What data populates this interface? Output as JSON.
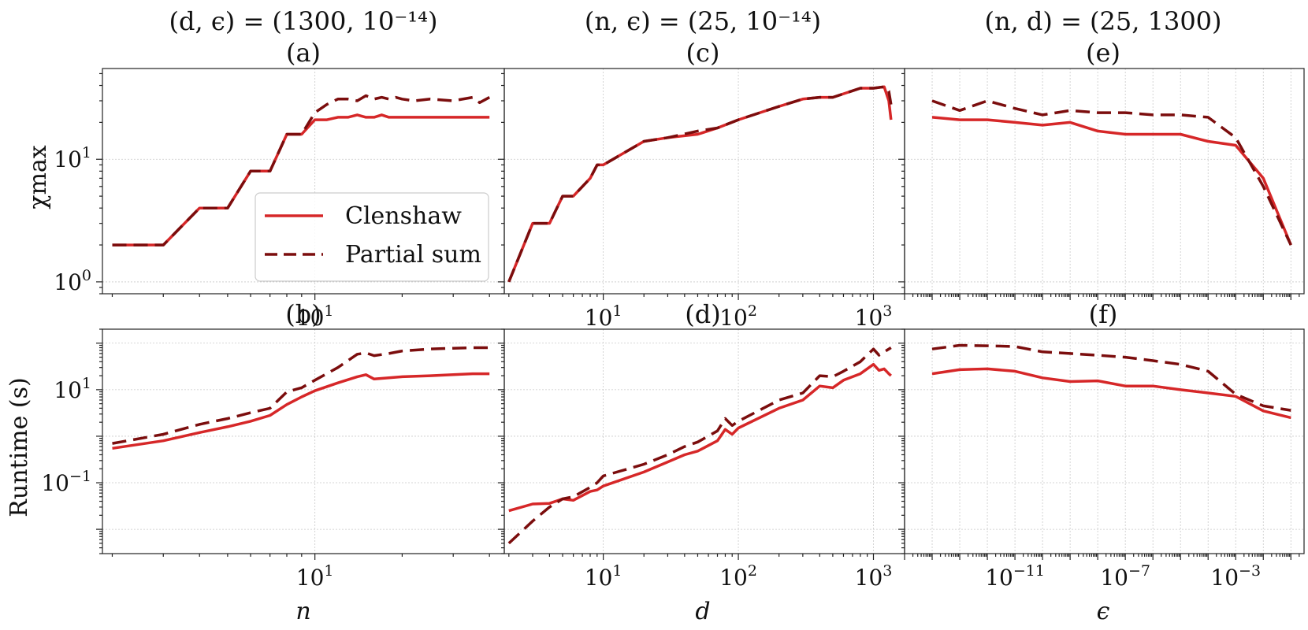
{
  "colors": {
    "clenshaw": "#d62728",
    "partial": "#7b0d0d",
    "grid": "#c9c9c9",
    "axis": "#222222"
  },
  "column_titles": [
    "(d, ϵ) = (1300, 10⁻¹⁴)",
    "(n, ϵ) = (25, 10⁻¹⁴)",
    "(n, d) = (25, 1300)"
  ],
  "row_ylabels": [
    "χmax",
    "Runtime (s)"
  ],
  "legend": {
    "clenshaw": "Clenshaw",
    "partial": "Partial sum",
    "placement": "lower-right of panel a"
  },
  "chart_data": [
    {
      "panel": "(a)",
      "type": "line",
      "xscale": "log",
      "yscale": "log",
      "xlim": [
        1.85,
        45
      ],
      "ylim": [
        0.8,
        55
      ],
      "xlabel": "",
      "ylabel": "χmax",
      "xticks": [
        {
          "v": 10,
          "label": "10",
          "exp": "1"
        }
      ],
      "yticks": [
        {
          "v": 1,
          "label": "10",
          "exp": "0"
        },
        {
          "v": 10,
          "label": "10",
          "exp": "1"
        }
      ],
      "series": [
        {
          "name": "Clenshaw",
          "x": [
            2,
            3,
            4,
            5,
            6,
            7,
            8,
            9,
            10,
            11,
            12,
            13,
            14,
            15,
            16,
            17,
            18,
            19,
            20,
            22,
            25,
            30,
            35,
            40
          ],
          "y": [
            2,
            2,
            4,
            4,
            8,
            8,
            16,
            16,
            21,
            21,
            22,
            22,
            23,
            22,
            22,
            23,
            22,
            22,
            22,
            22,
            22,
            22,
            22,
            22
          ]
        },
        {
          "name": "Partial sum",
          "x": [
            2,
            3,
            4,
            5,
            6,
            7,
            8,
            9,
            10,
            11,
            12,
            13,
            14,
            15,
            16,
            17,
            18,
            19,
            20,
            22,
            25,
            30,
            35,
            37,
            40
          ],
          "y": [
            2,
            2,
            4,
            4,
            8,
            8,
            16,
            16,
            24,
            28,
            31,
            31,
            30,
            33,
            31,
            32,
            31,
            32,
            31,
            30,
            31,
            30,
            32,
            29,
            32
          ]
        }
      ]
    },
    {
      "panel": "(c)",
      "type": "line",
      "xscale": "log",
      "yscale": "log",
      "xlim": [
        1.85,
        1700
      ],
      "ylim": [
        0.8,
        55
      ],
      "xlabel": "",
      "ylabel": "",
      "xticks": [
        {
          "v": 10,
          "label": "10",
          "exp": "1"
        },
        {
          "v": 100,
          "label": "10",
          "exp": "2"
        },
        {
          "v": 1000,
          "label": "10",
          "exp": "3"
        }
      ],
      "yticks": [],
      "series": [
        {
          "name": "Clenshaw",
          "x": [
            2,
            3,
            4,
            5,
            6,
            8,
            9,
            10,
            20,
            30,
            50,
            70,
            100,
            200,
            300,
            400,
            500,
            800,
            1000,
            1200,
            1300,
            1350
          ],
          "y": [
            1,
            3,
            3,
            5,
            5,
            7,
            9,
            9,
            14,
            15,
            16,
            18,
            21,
            27,
            31,
            32,
            32,
            38,
            38,
            39,
            30,
            21
          ]
        },
        {
          "name": "Partial sum",
          "x": [
            2,
            3,
            4,
            5,
            6,
            8,
            9,
            10,
            20,
            30,
            50,
            70,
            100,
            200,
            300,
            400,
            500,
            800,
            1000,
            1200,
            1300,
            1350
          ],
          "y": [
            1,
            3,
            3,
            5,
            5,
            7,
            9,
            9,
            14,
            15,
            17,
            18,
            21,
            27,
            31,
            32,
            32,
            38,
            38,
            39,
            36,
            28
          ]
        }
      ]
    },
    {
      "panel": "(e)",
      "type": "line",
      "xscale": "log",
      "yscale": "log",
      "xlim": [
        1e-15,
        0.3
      ],
      "ylim": [
        0.8,
        55
      ],
      "xlabel": "",
      "ylabel": "",
      "xticks": [],
      "yticks": [],
      "series": [
        {
          "name": "Clenshaw",
          "x": [
            1e-14,
            1e-13,
            1e-12,
            1e-11,
            1e-10,
            1e-09,
            1e-08,
            1e-07,
            1e-06,
            1e-05,
            0.0001,
            0.001,
            0.01,
            0.1
          ],
          "y": [
            22,
            21,
            21,
            20,
            19,
            20,
            17,
            16,
            16,
            16,
            14,
            13,
            7,
            2
          ]
        },
        {
          "name": "Partial sum",
          "x": [
            1e-14,
            1e-13,
            1e-12,
            1e-11,
            1e-10,
            1e-09,
            1e-08,
            1e-07,
            1e-06,
            1e-05,
            0.0001,
            0.001,
            0.01,
            0.1
          ],
          "y": [
            30,
            25,
            30,
            26,
            23,
            25,
            24,
            24,
            23,
            23,
            22,
            15,
            6,
            2
          ]
        }
      ]
    },
    {
      "panel": "(b)",
      "type": "line",
      "xscale": "log",
      "yscale": "log",
      "xlim": [
        1.85,
        45
      ],
      "ylim": [
        0.003,
        200
      ],
      "xlabel": "n",
      "ylabel": "Runtime (s)",
      "xticks": [
        {
          "v": 10,
          "label": "10",
          "exp": "1"
        }
      ],
      "yticks": [
        {
          "v": 0.1,
          "label": "10",
          "exp": "−1"
        },
        {
          "v": 10,
          "label": "10",
          "exp": "1"
        }
      ],
      "series": [
        {
          "name": "Clenshaw",
          "x": [
            2,
            3,
            4,
            5,
            6,
            7,
            8,
            9,
            10,
            12,
            14,
            15,
            16,
            18,
            20,
            25,
            30,
            35,
            40
          ],
          "y": [
            0.55,
            0.8,
            1.2,
            1.6,
            2.1,
            2.8,
            4.8,
            7,
            9.5,
            14,
            19,
            21,
            17,
            18,
            19,
            20,
            21,
            22,
            22
          ]
        },
        {
          "name": "Partial sum",
          "x": [
            2,
            3,
            4,
            5,
            6,
            7,
            8,
            9,
            10,
            12,
            14,
            15,
            16,
            18,
            20,
            25,
            30,
            35,
            40
          ],
          "y": [
            0.7,
            1.1,
            1.8,
            2.4,
            3.2,
            4,
            9,
            11,
            16,
            30,
            58,
            62,
            54,
            60,
            68,
            75,
            78,
            80,
            80
          ]
        }
      ]
    },
    {
      "panel": "(d)",
      "type": "line",
      "xscale": "log",
      "yscale": "log",
      "xlim": [
        1.85,
        1700
      ],
      "ylim": [
        0.003,
        200
      ],
      "xlabel": "d",
      "ylabel": "",
      "xticks": [
        {
          "v": 10,
          "label": "10",
          "exp": "1"
        },
        {
          "v": 100,
          "label": "10",
          "exp": "2"
        },
        {
          "v": 1000,
          "label": "10",
          "exp": "3"
        }
      ],
      "yticks": [],
      "series": [
        {
          "name": "Clenshaw",
          "x": [
            2,
            3,
            4,
            5,
            6,
            8,
            9,
            10,
            20,
            30,
            40,
            50,
            70,
            80,
            90,
            100,
            200,
            300,
            400,
            500,
            600,
            800,
            1000,
            1100,
            1200,
            1300,
            1350
          ],
          "y": [
            0.025,
            0.035,
            0.036,
            0.045,
            0.042,
            0.065,
            0.07,
            0.085,
            0.17,
            0.28,
            0.4,
            0.48,
            0.8,
            1.4,
            1.1,
            1.5,
            4,
            6,
            12,
            11,
            16,
            22,
            35,
            26,
            28,
            22,
            20
          ]
        },
        {
          "name": "Partial sum",
          "x": [
            2,
            3,
            4,
            5,
            6,
            8,
            9,
            10,
            20,
            30,
            40,
            50,
            70,
            80,
            90,
            100,
            200,
            300,
            400,
            500,
            600,
            800,
            1000,
            1100,
            1200,
            1300,
            1350
          ],
          "y": [
            0.005,
            0.015,
            0.03,
            0.045,
            0.05,
            0.08,
            0.1,
            0.14,
            0.25,
            0.4,
            0.6,
            0.75,
            1.3,
            2.4,
            1.7,
            2.1,
            6,
            8.5,
            20,
            19,
            25,
            40,
            75,
            55,
            65,
            75,
            80
          ]
        }
      ]
    },
    {
      "panel": "(f)",
      "type": "line",
      "xscale": "log",
      "yscale": "log",
      "xlim": [
        1e-15,
        0.3
      ],
      "ylim": [
        0.003,
        200
      ],
      "xlabel": "ϵ",
      "ylabel": "",
      "xticks": [
        {
          "v": 1e-11,
          "label": "10",
          "exp": "−11"
        },
        {
          "v": 1e-07,
          "label": "10",
          "exp": "−7"
        },
        {
          "v": 0.001,
          "label": "10",
          "exp": "−3"
        }
      ],
      "yticks": [],
      "series": [
        {
          "name": "Clenshaw",
          "x": [
            1e-14,
            1e-13,
            1e-12,
            1e-11,
            1e-10,
            1e-09,
            1e-08,
            1e-07,
            1e-06,
            1e-05,
            0.0001,
            0.001,
            0.01,
            0.1
          ],
          "y": [
            22,
            27,
            28,
            25,
            18,
            15,
            15.5,
            12,
            12,
            10,
            8.5,
            7.2,
            3.5,
            2.5
          ]
        },
        {
          "name": "Partial sum",
          "x": [
            1e-14,
            1e-13,
            1e-12,
            1e-11,
            1e-10,
            1e-09,
            1e-08,
            1e-07,
            1e-06,
            1e-05,
            0.0001,
            0.001,
            0.01,
            0.1
          ],
          "y": [
            75,
            90,
            88,
            85,
            65,
            60,
            55,
            50,
            42,
            35,
            25,
            8,
            4.5,
            3.6
          ]
        }
      ]
    }
  ],
  "panel_letters": [
    "(a)",
    "(c)",
    "(e)",
    "(b)",
    "(d)",
    "(f)"
  ],
  "xlabels": [
    "n",
    "d",
    "ϵ"
  ]
}
